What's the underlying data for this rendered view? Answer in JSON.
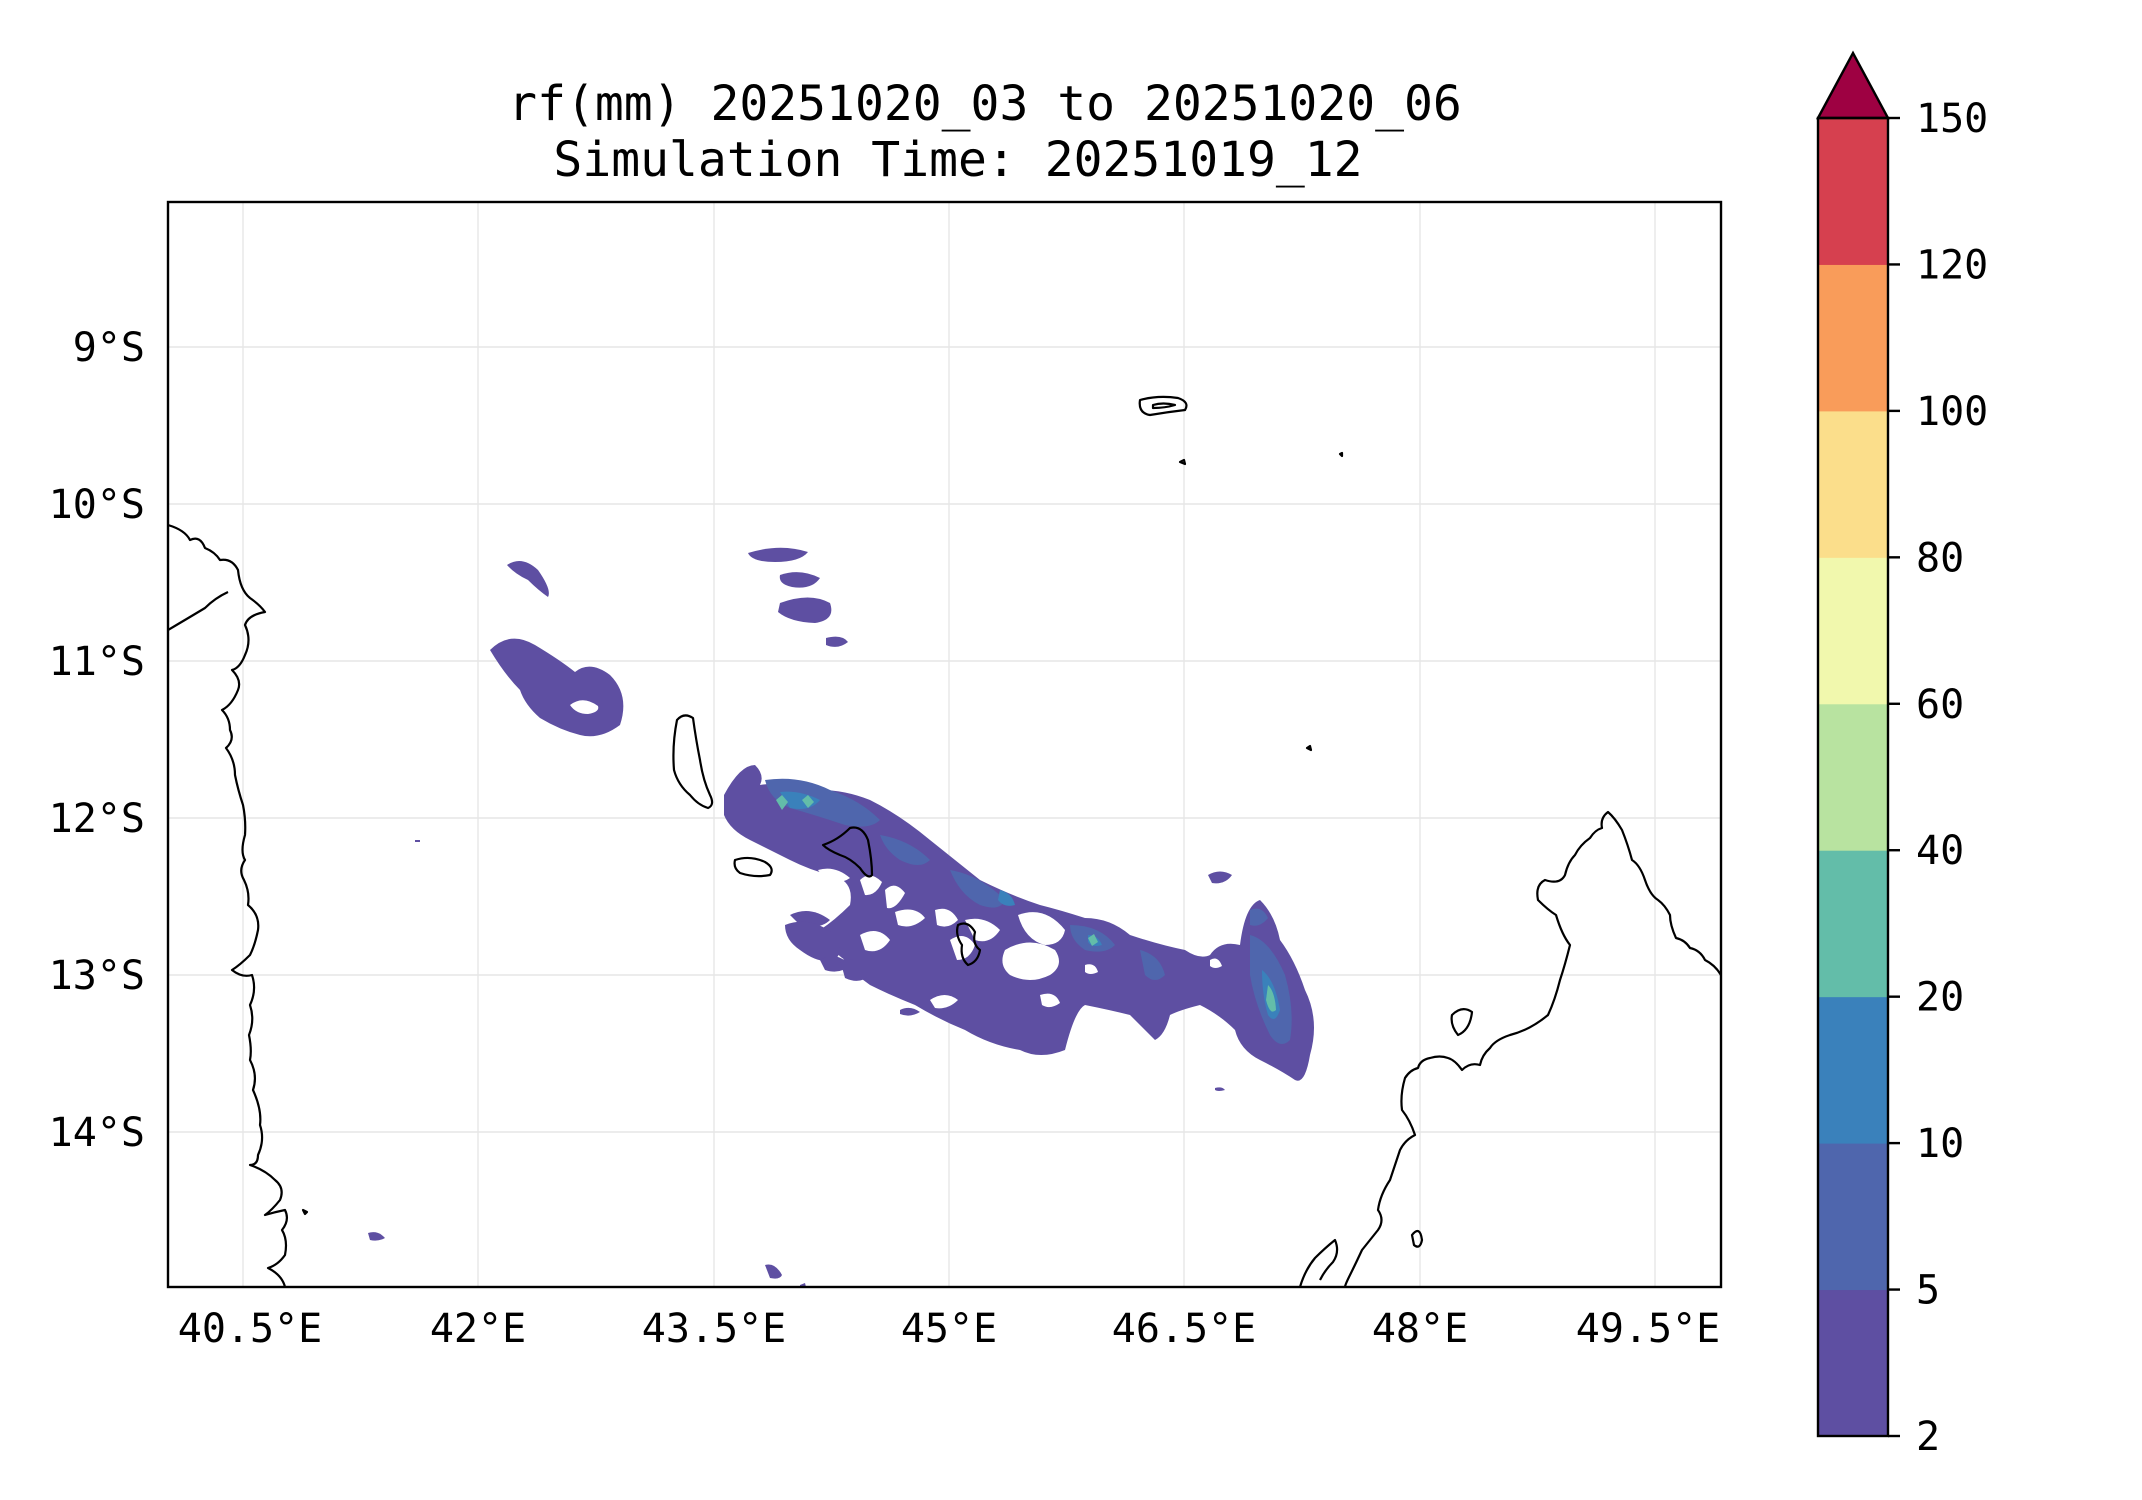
{
  "title": {
    "line1": "rf(mm) 20251020_03 to 20251020_06",
    "line2": "Simulation Time: 20251019_12"
  },
  "map": {
    "lon_range": [
      40.2,
      49.8
    ],
    "lat_range": [
      -15.0,
      -8.1
    ],
    "x_ticks": [
      "40.5°E",
      "42°E",
      "43.5°E",
      "45°E",
      "46.5°E",
      "48°E",
      "49.5°E"
    ],
    "x_tick_values": [
      40.5,
      42.0,
      43.5,
      45.0,
      46.5,
      48.0,
      49.5
    ],
    "y_ticks": [
      "9°S",
      "10°S",
      "11°S",
      "12°S",
      "13°S",
      "14°S"
    ],
    "y_tick_values": [
      -9,
      -10,
      -11,
      -12,
      -13,
      -14
    ],
    "grid": true
  },
  "colorbar": {
    "levels": [
      "2",
      "5",
      "10",
      "20",
      "40",
      "60",
      "80",
      "100",
      "120",
      "150"
    ],
    "colors": [
      "#5e4fa2",
      "#4f66ad",
      "#3a81bb",
      "#63bda9",
      "#b8e3a0",
      "#f1f8ad",
      "#fbde8b",
      "#f99c5a",
      "#d6404f"
    ],
    "extend_color": "#9e0142",
    "extend": "max"
  },
  "legend_colors": {
    "level_2_5": "#5e4fa2",
    "level_20_40": "#63bda9",
    "coastline": "#000000"
  }
}
